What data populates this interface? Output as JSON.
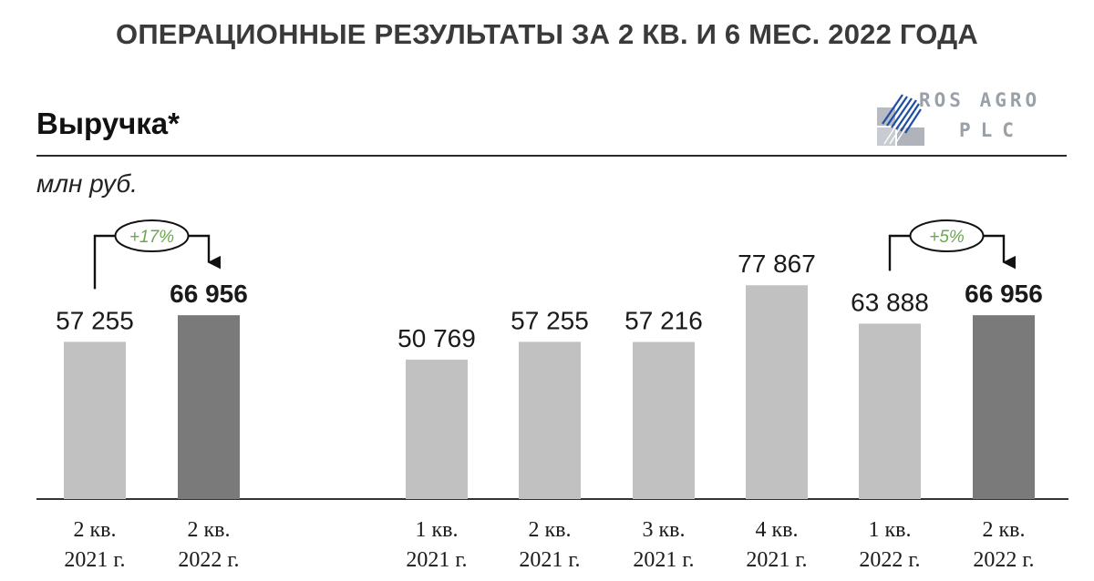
{
  "header": {
    "title": "ОПЕРАЦИОННЫЕ РЕЗУЛЬТАТЫ ЗА 2 КВ. И 6 МЕС. 2022 ГОДА",
    "section": "Выручка*",
    "units": "млн руб."
  },
  "logo": {
    "line1": "ROS AGRO",
    "line2": "PLC"
  },
  "colors": {
    "light_bar": "#c1c1c1",
    "dark_bar": "#7a7a7a",
    "growth_text": "#6aa84f",
    "axis": "#333333"
  },
  "chart_data": [
    {
      "type": "bar",
      "categories": [
        [
          "2 кв.",
          "2021 г."
        ],
        [
          "2 кв.",
          "2022 г."
        ]
      ],
      "values": [
        57255,
        66956
      ],
      "labels": [
        "57 255",
        "66 956"
      ],
      "highlight": [
        false,
        true
      ],
      "ylim": [
        0,
        90000
      ],
      "annotation": {
        "text": "+17%",
        "from": 0,
        "to": 1
      }
    },
    {
      "type": "bar",
      "categories": [
        [
          "1 кв.",
          "2021 г."
        ],
        [
          "2 кв.",
          "2021 г."
        ],
        [
          "3 кв.",
          "2021 г."
        ],
        [
          "4 кв.",
          "2021 г."
        ],
        [
          "1 кв.",
          "2022 г."
        ],
        [
          "2 кв.",
          "2022 г."
        ]
      ],
      "values": [
        50769,
        57255,
        57216,
        77867,
        63888,
        66956
      ],
      "labels": [
        "50 769",
        "57 255",
        "57 216",
        "77 867",
        "63 888",
        "66 956"
      ],
      "highlight": [
        false,
        false,
        false,
        false,
        false,
        true
      ],
      "ylim": [
        0,
        90000
      ],
      "annotation": {
        "text": "+5%",
        "from": 4,
        "to": 5
      }
    }
  ]
}
